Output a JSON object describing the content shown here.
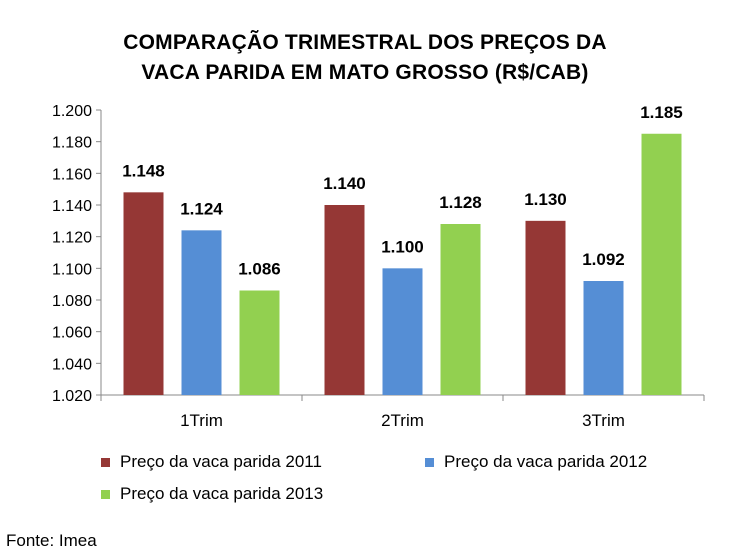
{
  "chart_data": {
    "type": "bar",
    "title_lines": [
      "COMPARAÇÃO TRIMESTRAL DOS PREÇOS DA",
      "VACA PARIDA  EM MATO GROSSO (R$/CAB)"
    ],
    "categories": [
      "1Trim",
      "2Trim",
      "3Trim"
    ],
    "series": [
      {
        "name": "Preço da vaca parida 2011",
        "color": "#953735",
        "values": [
          1.148,
          1.14,
          1.13
        ],
        "labels": [
          "1.148",
          "1.140",
          "1.130"
        ]
      },
      {
        "name": "Preço da vaca parida 2012",
        "color": "#558ED5",
        "values": [
          1.124,
          1.1,
          1.092
        ],
        "labels": [
          "1.124",
          "1.100",
          "1.092"
        ]
      },
      {
        "name": "Preço da vaca parida 2013",
        "color": "#92D050",
        "values": [
          1.086,
          1.128,
          1.185
        ],
        "labels": [
          "1.086",
          "1.128",
          "1.185"
        ]
      }
    ],
    "ylim": [
      1.02,
      1.2
    ],
    "ytick_values": [
      1.02,
      1.04,
      1.06,
      1.08,
      1.1,
      1.12,
      1.14,
      1.16,
      1.18,
      1.2
    ],
    "ytick_labels": [
      "1.020",
      "1.040",
      "1.060",
      "1.080",
      "1.100",
      "1.120",
      "1.140",
      "1.160",
      "1.180",
      "1.200"
    ],
    "grid": false,
    "legend_position": "bottom"
  },
  "source": "Fonte: Imea"
}
